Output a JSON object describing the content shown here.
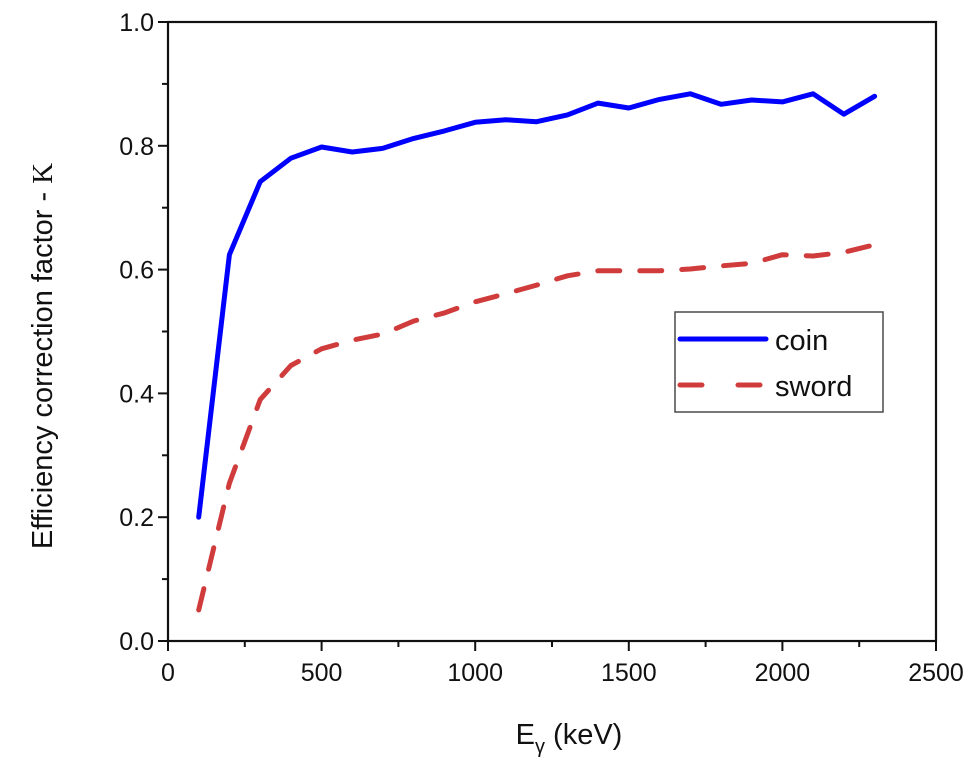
{
  "chart_data": {
    "type": "line",
    "title": "",
    "xlabel": "Eγ (keV)",
    "xlabel_parts": {
      "main": "E",
      "subscript": "γ",
      "rest": " (keV)"
    },
    "ylabel": "Efficiency correction factor - K",
    "ylabel_parts": {
      "main": "Efficiency correction factor - ",
      "symbol": "K"
    },
    "xlim": [
      0,
      2500
    ],
    "ylim": [
      0.0,
      1.0
    ],
    "x_ticks": [
      0,
      500,
      1000,
      1500,
      2000,
      2500
    ],
    "x_tick_labels": [
      "0",
      "500",
      "1000",
      "1500",
      "2000",
      "2500"
    ],
    "x_minor_ticks": [
      250,
      750,
      1250,
      1750,
      2250
    ],
    "y_ticks": [
      0.0,
      0.2,
      0.4,
      0.6,
      0.8,
      1.0
    ],
    "y_tick_labels": [
      "0.0",
      "0.2",
      "0.4",
      "0.6",
      "0.8",
      "1.0"
    ],
    "y_minor_ticks": [
      0.1,
      0.3,
      0.5,
      0.7,
      0.9
    ],
    "grid": false,
    "legend_position": "center-right",
    "x": [
      100,
      200,
      300,
      400,
      500,
      600,
      700,
      800,
      900,
      1000,
      1100,
      1200,
      1300,
      1400,
      1500,
      1600,
      1700,
      1800,
      1900,
      2000,
      2100,
      2200,
      2300
    ],
    "series": [
      {
        "name": "coin",
        "color": "#0000ff",
        "style": "solid",
        "values": [
          0.2,
          0.624,
          0.742,
          0.78,
          0.798,
          0.79,
          0.796,
          0.812,
          0.824,
          0.838,
          0.842,
          0.839,
          0.85,
          0.869,
          0.861,
          0.875,
          0.884,
          0.867,
          0.874,
          0.871,
          0.884,
          0.851,
          0.88
        ]
      },
      {
        "name": "sword",
        "color": "#d03c3c",
        "style": "dashed",
        "values": [
          0.05,
          0.255,
          0.39,
          0.445,
          0.472,
          0.486,
          0.496,
          0.517,
          0.53,
          0.548,
          0.561,
          0.575,
          0.59,
          0.598,
          0.598,
          0.598,
          0.601,
          0.606,
          0.61,
          0.624,
          0.622,
          0.628,
          0.64
        ]
      }
    ]
  },
  "legend": {
    "items": [
      {
        "label": "coin"
      },
      {
        "label": "sword"
      }
    ]
  }
}
